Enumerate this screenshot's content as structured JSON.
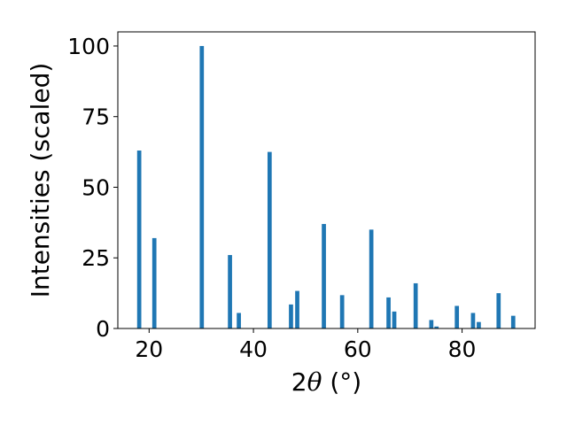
{
  "chart_data": {
    "type": "bar",
    "title": "",
    "xlabel": {
      "prefix": "2",
      "symbol": "θ",
      "suffix": " (°)"
    },
    "ylabel": "Intensities (scaled)",
    "xlim": [
      14,
      94
    ],
    "ylim": [
      0,
      105
    ],
    "xticks": [
      20,
      40,
      60,
      80
    ],
    "yticks": [
      0,
      25,
      50,
      75,
      100
    ],
    "grid": false,
    "bar_color": "#1f77b4",
    "bar_width": 0.8,
    "series": [
      {
        "x": [
          18.1,
          21.0,
          30.1,
          35.5,
          37.2,
          43.1,
          47.2,
          48.4,
          53.5,
          57.0,
          62.6,
          65.9,
          67.0,
          71.1,
          74.1,
          75.1,
          79.0,
          82.1,
          83.2,
          87.0,
          89.8
        ],
        "values": [
          63,
          32,
          100,
          26,
          5.5,
          62.5,
          8.5,
          13.3,
          37,
          11.8,
          35,
          11,
          6,
          16,
          3,
          0.7,
          8,
          5.5,
          2.3,
          12.5,
          4.5
        ]
      }
    ]
  }
}
